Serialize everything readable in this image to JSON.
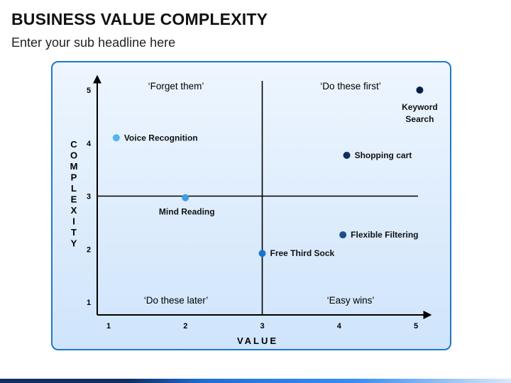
{
  "header": {
    "title": "BUSINESS VALUE COMPLEXITY",
    "subtitle": "Enter your sub headline here"
  },
  "chart_data": {
    "type": "scatter",
    "xlabel": "VALUE",
    "ylabel": "COMPLEXITY",
    "xlim": [
      1,
      5
    ],
    "ylim": [
      1,
      5
    ],
    "xticks": [
      "1",
      "2",
      "3",
      "4",
      "5"
    ],
    "yticks": [
      "1",
      "2",
      "3",
      "4",
      "5"
    ],
    "divider_x": 3,
    "divider_y": 3,
    "grid": false,
    "quadrant_labels": [
      {
        "text": "‘Forget them’",
        "quadrant": "top-left"
      },
      {
        "text": "‘Do these first’",
        "quadrant": "top-right"
      },
      {
        "text": "‘Do these later’",
        "quadrant": "bottom-left"
      },
      {
        "text": "‘Easy wins’",
        "quadrant": "bottom-right"
      }
    ],
    "points": [
      {
        "label": "Voice Recognition",
        "x": 1.1,
        "y": 4.1,
        "color": "#4fb3f5"
      },
      {
        "label": "Mind Reading",
        "x": 2.0,
        "y": 2.97,
        "color": "#3f9be8"
      },
      {
        "label": "Free Third Sock",
        "x": 3.0,
        "y": 1.92,
        "color": "#1a73d4"
      },
      {
        "label": "Flexible Filtering",
        "x": 4.05,
        "y": 2.27,
        "color": "#1c4e8c"
      },
      {
        "label": "Shopping cart",
        "x": 4.1,
        "y": 3.77,
        "color": "#0e2f5e"
      },
      {
        "label": "Keyword Search",
        "x": 5.05,
        "y": 5.0,
        "color": "#0a1f44"
      }
    ],
    "point_label_positions": [
      "right",
      "below",
      "right",
      "right",
      "right",
      "below-multiline"
    ]
  },
  "colors": {
    "panel_border": "#1f78c8",
    "axis": "#000000"
  }
}
